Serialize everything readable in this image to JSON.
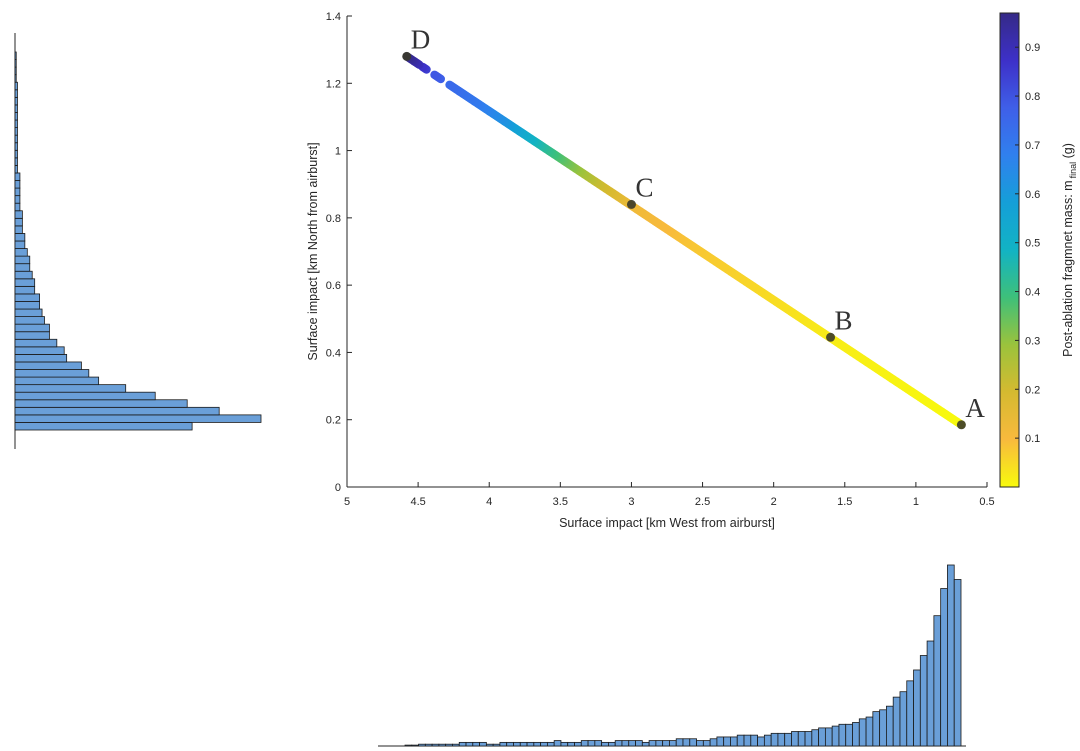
{
  "chart_data": [
    {
      "type": "scatter",
      "xlabel": "Surface impact [km West from airburst]",
      "ylabel": "Surface impact [km North from airburst]",
      "xlim": [
        5,
        0.5
      ],
      "x_reversed": true,
      "ylim": [
        0,
        1.4
      ],
      "xticks": [
        "5",
        "4.5",
        "4",
        "3.5",
        "3",
        "2.5",
        "2",
        "1.5",
        "1",
        "0.5"
      ],
      "yticks": [
        "0",
        "0.2",
        "0.4",
        "0.6",
        "0.8",
        "1",
        "1.2",
        "1.4"
      ],
      "grid": false,
      "colorbar": {
        "label": "Post-ablation fragmnet mass: m",
        "label_subscript": "final",
        "label_units": " (g)",
        "range": [
          0,
          0.97
        ],
        "ticks": [
          "0.1",
          "0.2",
          "0.3",
          "0.4",
          "0.5",
          "0.6",
          "0.7",
          "0.8",
          "0.9"
        ],
        "colormap": "parula-like",
        "colors": [
          "#f8fa0d",
          "#f8ba3d",
          "#d5ba30",
          "#9bc33c",
          "#3ec07a",
          "#12b3c4",
          "#159fd8",
          "#3080ee",
          "#3f5fe8",
          "#3d30c8",
          "#352a87"
        ]
      },
      "marked_points": [
        {
          "label": "A",
          "x": 0.68,
          "y": 0.185
        },
        {
          "label": "B",
          "x": 1.6,
          "y": 0.445
        },
        {
          "label": "C",
          "x": 3.0,
          "y": 0.84
        },
        {
          "label": "D",
          "x": 4.58,
          "y": 1.28
        }
      ],
      "series": [
        {
          "line_from": {
            "x": 0.68,
            "y": 0.185
          },
          "line_to": {
            "x": 4.58,
            "y": 1.28
          },
          "mass_at_x": [
            [
              0.68,
              0.0
            ],
            [
              1.6,
              0.02
            ],
            [
              2.6,
              0.08
            ],
            [
              3.0,
              0.12
            ],
            [
              3.25,
              0.22
            ],
            [
              3.6,
              0.42
            ],
            [
              3.9,
              0.62
            ],
            [
              4.1,
              0.7
            ],
            [
              4.3,
              0.75
            ],
            [
              4.4,
              0.8
            ],
            [
              4.5,
              0.9
            ],
            [
              4.58,
              0.97
            ]
          ]
        }
      ]
    },
    {
      "type": "bar",
      "orientation": "horizontal",
      "description_axis": "distribution along y (North)",
      "values": [
        0.72,
        1.0,
        0.83,
        0.7,
        0.57,
        0.45,
        0.34,
        0.3,
        0.27,
        0.21,
        0.2,
        0.17,
        0.14,
        0.14,
        0.12,
        0.11,
        0.1,
        0.1,
        0.08,
        0.08,
        0.07,
        0.06,
        0.06,
        0.05,
        0.04,
        0.04,
        0.03,
        0.03,
        0.03,
        0.02,
        0.02,
        0.02,
        0.02,
        0.02,
        0.01,
        0.01,
        0.01,
        0.01,
        0.01,
        0.01,
        0.01,
        0.01,
        0.01,
        0.01,
        0.01,
        0.01,
        0.005,
        0.005,
        0.005,
        0.005
      ]
    },
    {
      "type": "bar",
      "orientation": "vertical",
      "description_axis": "distribution along x (West)",
      "values": [
        0.005,
        0.005,
        0.01,
        0.01,
        0.01,
        0.01,
        0.01,
        0.01,
        0.02,
        0.02,
        0.02,
        0.02,
        0.01,
        0.01,
        0.02,
        0.02,
        0.02,
        0.02,
        0.02,
        0.02,
        0.02,
        0.02,
        0.03,
        0.02,
        0.02,
        0.02,
        0.03,
        0.03,
        0.03,
        0.02,
        0.02,
        0.03,
        0.03,
        0.03,
        0.03,
        0.02,
        0.03,
        0.03,
        0.03,
        0.03,
        0.04,
        0.04,
        0.04,
        0.03,
        0.03,
        0.04,
        0.05,
        0.05,
        0.05,
        0.06,
        0.06,
        0.06,
        0.05,
        0.06,
        0.07,
        0.07,
        0.07,
        0.08,
        0.08,
        0.08,
        0.09,
        0.1,
        0.1,
        0.11,
        0.12,
        0.12,
        0.13,
        0.15,
        0.16,
        0.19,
        0.2,
        0.22,
        0.27,
        0.3,
        0.36,
        0.42,
        0.5,
        0.58,
        0.72,
        0.87,
        1.0,
        0.92
      ]
    }
  ]
}
